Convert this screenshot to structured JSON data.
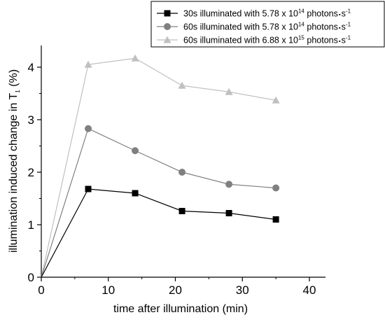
{
  "chart_data": {
    "type": "line",
    "xlabel": "time after illumination (min)",
    "ylabel_main": "illumination induced change in T",
    "ylabel_sub": "1",
    "ylabel_unit": " (%)",
    "xlim": [
      0,
      42
    ],
    "ylim": [
      0,
      4.4
    ],
    "x_ticks": [
      "0",
      "10",
      "20",
      "30",
      "40"
    ],
    "y_ticks": [
      "0",
      "1",
      "2",
      "3",
      "4"
    ],
    "x_tick_values": [
      0,
      10,
      20,
      30,
      40
    ],
    "y_tick_values": [
      0,
      1,
      2,
      3,
      4
    ],
    "grid": false,
    "legend_position": "top-right",
    "series": [
      {
        "name_prefix": "30s illuminated with 5.78 x 10",
        "name_exp": "14",
        "name_suffix": " photons",
        "name_tail": "s",
        "name_tail_exp": "-1",
        "marker": "square",
        "color": "#000000",
        "x": [
          0,
          7,
          14,
          21,
          28,
          35
        ],
        "y": [
          0,
          1.68,
          1.6,
          1.26,
          1.22,
          1.1
        ]
      },
      {
        "name_prefix": "60s illuminated with 5.78 x 10",
        "name_exp": "14",
        "name_suffix": " photons",
        "name_tail": "s",
        "name_tail_exp": "-1",
        "marker": "circle",
        "color": "#808080",
        "x": [
          0,
          7,
          14,
          21,
          28,
          35
        ],
        "y": [
          0,
          2.83,
          2.41,
          2.0,
          1.77,
          1.7
        ]
      },
      {
        "name_prefix": "60s illuminated with 6.88 x 10",
        "name_exp": "15",
        "name_suffix": " photons",
        "name_tail": "s",
        "name_tail_exp": "-1",
        "marker": "triangle",
        "color": "#c0c0c0",
        "x": [
          0,
          7,
          14,
          21,
          28,
          35
        ],
        "y": [
          0,
          4.05,
          4.17,
          3.65,
          3.53,
          3.37
        ]
      }
    ]
  }
}
